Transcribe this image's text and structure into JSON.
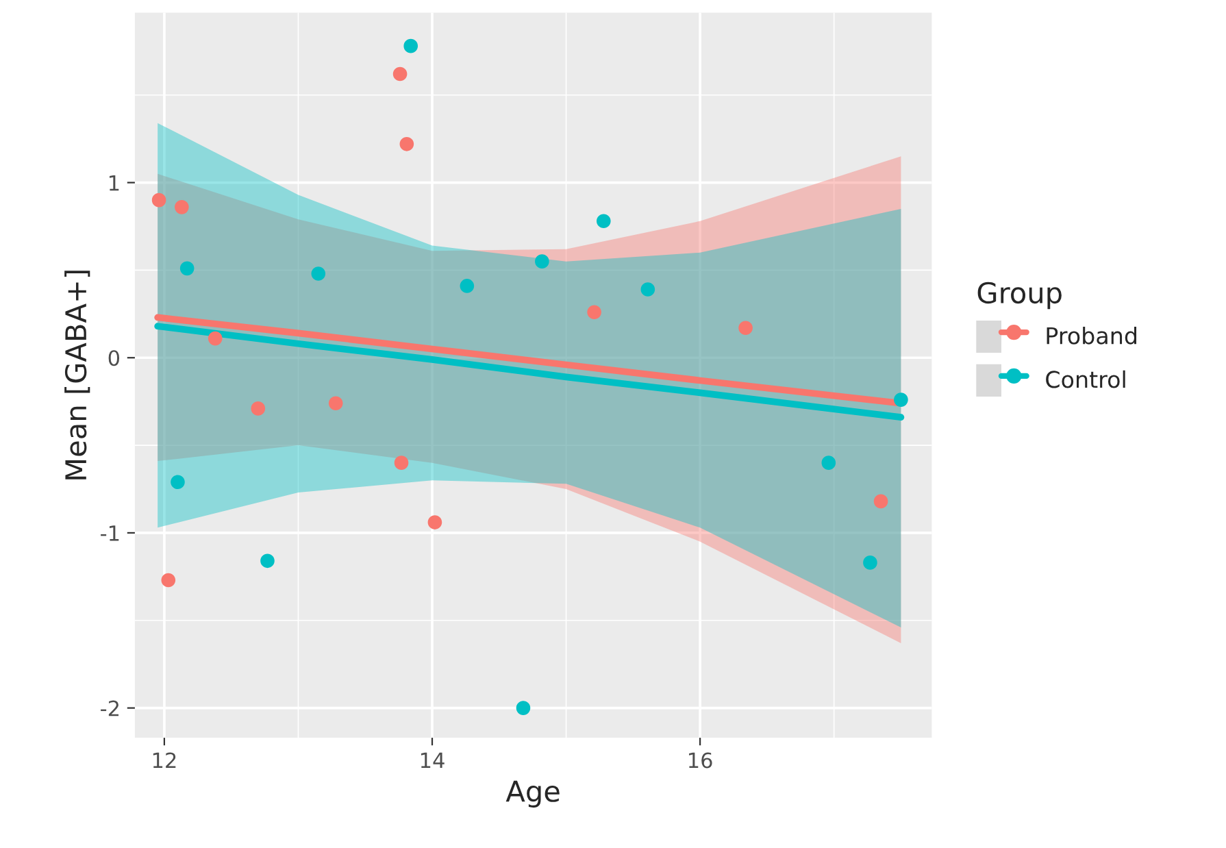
{
  "chart_data": {
    "type": "scatter",
    "xlabel": "Age",
    "ylabel": "Mean [GABA+]",
    "legend_title": "Group",
    "xlim": [
      11.78,
      17.73
    ],
    "ylim": [
      -2.17,
      1.97
    ],
    "xticks": [
      12,
      14,
      16
    ],
    "yticks": [
      -2,
      -1,
      0,
      1
    ],
    "grid": true,
    "legend": "right",
    "series": [
      {
        "type": "line",
        "color": "#f8766d",
        "x": [
          11.95,
          13,
          14,
          15,
          16,
          17.5
        ],
        "values": [
          0.23,
          0.14,
          0.05,
          -0.04,
          -0.13,
          -0.26
        ],
        "lower": [
          -0.59,
          -0.5,
          -0.6,
          -0.75,
          -1.05,
          -1.63
        ],
        "upper": [
          1.05,
          0.79,
          0.61,
          0.62,
          0.78,
          1.15
        ]
      },
      {
        "type": "line",
        "color": "#00bfc4",
        "x": [
          11.95,
          13,
          14,
          15,
          16,
          17.5
        ],
        "values": [
          0.18,
          0.08,
          -0.01,
          -0.11,
          -0.2,
          -0.34
        ],
        "lower": [
          -0.97,
          -0.77,
          -0.7,
          -0.72,
          -0.97,
          -1.54
        ],
        "upper": [
          1.34,
          0.93,
          0.64,
          0.55,
          0.6,
          0.85
        ]
      },
      {
        "name": "Proband",
        "marker": "circle",
        "color": "#f8766d",
        "x": [
          11.96,
          12.13,
          12.38,
          12.03,
          12.7,
          13.28,
          13.76,
          13.81,
          13.77,
          14.02,
          15.21,
          16.34,
          17.35
        ],
        "values": [
          0.9,
          0.86,
          0.11,
          -1.27,
          -0.29,
          -0.26,
          1.62,
          1.22,
          -0.6,
          -0.94,
          0.26,
          0.17,
          -0.82
        ]
      },
      {
        "name": "Control",
        "marker": "circle",
        "color": "#00bfc4",
        "x": [
          13.84,
          12.17,
          13.15,
          14.26,
          14.82,
          15.28,
          15.61,
          12.1,
          12.77,
          14.68,
          16.96,
          17.27,
          17.5
        ],
        "values": [
          1.78,
          0.51,
          0.48,
          0.41,
          0.55,
          0.78,
          0.39,
          -0.71,
          -1.16,
          -2.0,
          -0.6,
          -1.17,
          -0.24
        ]
      }
    ]
  }
}
